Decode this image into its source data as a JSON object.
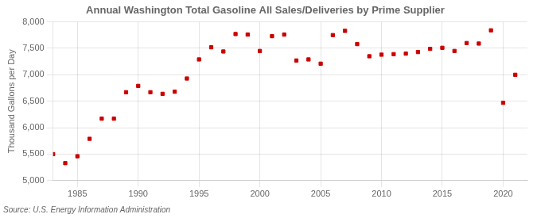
{
  "chart_data": {
    "type": "scatter",
    "title": "Annual Washington Total Gasoline All Sales/Deliveries by Prime Supplier",
    "ylabel": "Thousand Gallons per Day",
    "source": "Source: U.S. Energy Information Administration",
    "x": [
      1983,
      1984,
      1985,
      1986,
      1987,
      1988,
      1989,
      1990,
      1991,
      1992,
      1993,
      1994,
      1995,
      1996,
      1997,
      1998,
      1999,
      2000,
      2001,
      2002,
      2003,
      2004,
      2005,
      2006,
      2007,
      2008,
      2009,
      2010,
      2011,
      2012,
      2013,
      2014,
      2015,
      2016,
      2017,
      2018,
      2019,
      2020,
      2021
    ],
    "values": [
      5500,
      5330,
      5460,
      5790,
      6170,
      6170,
      6670,
      6790,
      6670,
      6640,
      6680,
      6930,
      7290,
      7520,
      7440,
      7770,
      7760,
      7450,
      7730,
      7760,
      7270,
      7290,
      7210,
      7750,
      7830,
      7580,
      7350,
      7380,
      7390,
      7400,
      7430,
      7490,
      7510,
      7450,
      7600,
      7590,
      7840,
      6470,
      7000
    ],
    "color": "#cc0000",
    "marker": "square",
    "xlim": [
      1983,
      2022
    ],
    "xticks": [
      1985,
      1990,
      1995,
      2000,
      2005,
      2010,
      2015,
      2020
    ],
    "ylim": [
      5000,
      8000
    ],
    "yticks": [
      {
        "value": 5000,
        "label": "5,000"
      },
      {
        "value": 5500,
        "label": "5,500"
      },
      {
        "value": 6000,
        "label": "6,000"
      },
      {
        "value": 6500,
        "label": "6,500"
      },
      {
        "value": 7000,
        "label": "7,000"
      },
      {
        "value": 7500,
        "label": "7,500"
      },
      {
        "value": 8000,
        "label": "8,000"
      }
    ],
    "grid": true
  }
}
